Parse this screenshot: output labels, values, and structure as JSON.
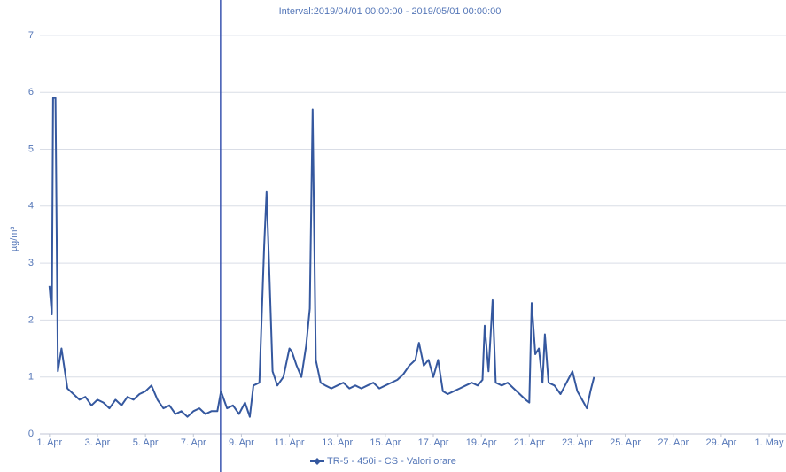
{
  "chart_data": {
    "type": "line",
    "title": "Interval:2019/04/01 00:00:00 - 2019/05/01 00:00:00",
    "y_label": "µg/m³",
    "x": [
      1,
      1.1,
      1.15,
      1.25,
      1.35,
      1.5,
      1.75,
      2,
      2.25,
      2.5,
      2.75,
      3,
      3.25,
      3.5,
      3.75,
      4,
      4.25,
      4.5,
      4.75,
      5,
      5.25,
      5.5,
      5.75,
      6,
      6.25,
      6.5,
      6.75,
      7,
      7.25,
      7.5,
      7.75,
      8,
      8.15,
      8.4,
      8.65,
      8.9,
      9.15,
      9.35,
      9.5,
      9.75,
      9.95,
      10.05,
      10.15,
      10.3,
      10.5,
      10.75,
      11,
      11.1,
      11.3,
      11.5,
      11.7,
      11.85,
      11.97,
      12.1,
      12.3,
      12.5,
      12.75,
      13,
      13.25,
      13.5,
      13.75,
      14,
      14.25,
      14.5,
      14.75,
      15,
      15.25,
      15.5,
      15.75,
      16,
      16.25,
      16.4,
      16.6,
      16.8,
      17,
      17.2,
      17.4,
      17.6,
      17.85,
      18.1,
      18.35,
      18.6,
      18.85,
      19.05,
      19.14,
      19.3,
      19.47,
      19.6,
      19.85,
      20.1,
      20.35,
      20.6,
      20.85,
      21,
      21.1,
      21.25,
      21.4,
      21.55,
      21.65,
      21.8,
      22.05,
      22.3,
      22.55,
      22.8,
      23,
      23.2,
      23.4,
      23.55,
      23.7
    ],
    "series": [
      {
        "name": "TR-5 - 450i - CS - Valori orare",
        "color": "#35589f",
        "values": [
          2.6,
          2.1,
          5.9,
          5.9,
          1.1,
          1.5,
          0.8,
          0.7,
          0.6,
          0.65,
          0.5,
          0.6,
          0.55,
          0.45,
          0.6,
          0.5,
          0.65,
          0.6,
          0.7,
          0.75,
          0.85,
          0.6,
          0.45,
          0.5,
          0.35,
          0.4,
          0.3,
          0.4,
          0.45,
          0.35,
          0.4,
          0.4,
          0.75,
          0.45,
          0.5,
          0.35,
          0.55,
          0.3,
          0.85,
          0.9,
          3.3,
          4.25,
          3.0,
          1.1,
          0.85,
          1.0,
          1.5,
          1.45,
          1.2,
          1.0,
          1.55,
          2.2,
          5.7,
          1.3,
          0.9,
          0.85,
          0.8,
          0.85,
          0.9,
          0.8,
          0.85,
          0.8,
          0.85,
          0.9,
          0.8,
          0.85,
          0.9,
          0.95,
          1.05,
          1.2,
          1.3,
          1.6,
          1.2,
          1.3,
          1.0,
          1.3,
          0.75,
          0.7,
          0.75,
          0.8,
          0.85,
          0.9,
          0.85,
          0.95,
          1.9,
          1.1,
          2.35,
          0.9,
          0.85,
          0.9,
          0.8,
          0.7,
          0.6,
          0.55,
          2.3,
          1.4,
          1.5,
          0.9,
          1.75,
          0.9,
          0.85,
          0.7,
          0.9,
          1.1,
          0.75,
          0.6,
          0.45,
          0.75,
          1.0
        ]
      }
    ],
    "xlim": [
      0.6,
      31.7
    ],
    "xticks": [
      {
        "value": 1,
        "label": "1. Apr"
      },
      {
        "value": 3,
        "label": "3. Apr"
      },
      {
        "value": 5,
        "label": "5. Apr"
      },
      {
        "value": 7,
        "label": "7. Apr"
      },
      {
        "value": 9,
        "label": "9. Apr"
      },
      {
        "value": 11,
        "label": "11. Apr"
      },
      {
        "value": 13,
        "label": "13. Apr"
      },
      {
        "value": 15,
        "label": "15. Apr"
      },
      {
        "value": 17,
        "label": "17. Apr"
      },
      {
        "value": 19,
        "label": "19. Apr"
      },
      {
        "value": 21,
        "label": "21. Apr"
      },
      {
        "value": 23,
        "label": "23. Apr"
      },
      {
        "value": 25,
        "label": "25. Apr"
      },
      {
        "value": 27,
        "label": "27. Apr"
      },
      {
        "value": 29,
        "label": "29. Apr"
      },
      {
        "value": 31,
        "label": "1. May"
      }
    ],
    "ylim": [
      0,
      7.3
    ],
    "yticks": [
      0,
      1,
      2,
      3,
      4,
      5,
      6,
      7
    ],
    "marker_x": 8.13,
    "grid": true
  }
}
